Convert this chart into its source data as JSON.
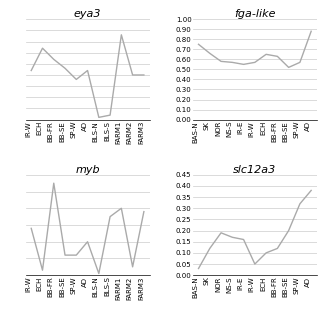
{
  "eya3": {
    "title": "eya3",
    "labels": [
      "IR-W",
      "ECH",
      "BB-FR",
      "BB-SE",
      "SP-W",
      "AD",
      "BLS-N",
      "BLS-S",
      "FARM1",
      "FARM2",
      "FARM3"
    ],
    "values": [
      0.22,
      0.32,
      0.27,
      0.23,
      0.18,
      0.22,
      0.01,
      0.02,
      0.38,
      0.2,
      0.2
    ],
    "ylim": [
      0.0,
      0.45
    ],
    "yticks": [
      0.05,
      0.1,
      0.15,
      0.2,
      0.25,
      0.3,
      0.35,
      0.4,
      0.45
    ],
    "show_ytick_labels": false
  },
  "fga_like": {
    "title": "fga-like",
    "labels": [
      "BAS-N",
      "SK",
      "NOR",
      "NS-S",
      "IR-E",
      "IR-W",
      "ECH",
      "BB-FR",
      "BB-SE",
      "SP-W",
      "AD"
    ],
    "values": [
      0.75,
      0.66,
      0.58,
      0.57,
      0.55,
      0.57,
      0.65,
      0.63,
      0.52,
      0.57,
      0.88
    ],
    "ylim": [
      0.0,
      1.0
    ],
    "yticks": [
      0.0,
      0.1,
      0.2,
      0.3,
      0.4,
      0.5,
      0.6,
      0.7,
      0.8,
      0.9,
      1.0
    ],
    "show_ytick_labels": true
  },
  "myb": {
    "title": "myb",
    "labels": [
      "IR-W",
      "ECH",
      "BB-FR",
      "BB-SE",
      "SP-W",
      "AD",
      "BLS-N",
      "BLS-S",
      "FARM1",
      "FARM2",
      "FARM3"
    ],
    "values": [
      0.28,
      0.03,
      0.55,
      0.12,
      0.12,
      0.2,
      0.01,
      0.35,
      0.4,
      0.05,
      0.38
    ],
    "ylim": [
      0.0,
      0.6
    ],
    "yticks": [
      0.1,
      0.2,
      0.3,
      0.4,
      0.5,
      0.6
    ],
    "show_ytick_labels": false
  },
  "slc12a3": {
    "title": "slc12a3",
    "labels": [
      "BAS-N",
      "SK",
      "NOR",
      "NS-S",
      "IR-E",
      "IR-W",
      "ECH",
      "BB-FR",
      "BB-SE",
      "SP-W",
      "AD"
    ],
    "values": [
      0.03,
      0.12,
      0.19,
      0.17,
      0.16,
      0.05,
      0.1,
      0.12,
      0.2,
      0.32,
      0.38
    ],
    "ylim": [
      0.0,
      0.45
    ],
    "yticks": [
      0.0,
      0.05,
      0.1,
      0.15,
      0.2,
      0.25,
      0.3,
      0.35,
      0.4,
      0.45
    ],
    "show_ytick_labels": true
  },
  "line_color": "#aaaaaa",
  "grid_color": "#cccccc",
  "bg_color": "#ffffff",
  "title_fontsize": 8,
  "tick_fontsize": 5,
  "line_width": 1.0
}
